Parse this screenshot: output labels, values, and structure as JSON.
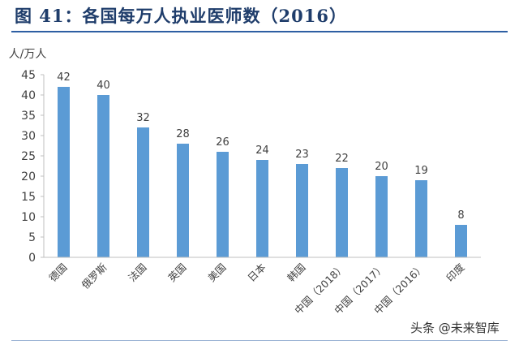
{
  "title": "图 41：各国每万人执业医师数（2016）",
  "watermark": "头条 @未来智库",
  "chart_data": {
    "type": "bar",
    "ylabel": "人/万人",
    "ylim": [
      0,
      45
    ],
    "yticks": [
      0,
      5,
      10,
      15,
      20,
      25,
      30,
      35,
      40,
      45
    ],
    "categories": [
      "德国",
      "俄罗斯",
      "法国",
      "英国",
      "美国",
      "日本",
      "韩国",
      "中国（2018）",
      "中国（2017）",
      "中国（2016）",
      "印度"
    ],
    "values": [
      42,
      40,
      32,
      28,
      26,
      24,
      23,
      22,
      20,
      19,
      8
    ],
    "data_labels": [
      "42",
      "40",
      "32",
      "28",
      "26",
      "24",
      "23",
      "22",
      "20",
      "19",
      "8"
    ],
    "bar_color": "#5b9bd5",
    "grid": false,
    "legend": "none"
  }
}
